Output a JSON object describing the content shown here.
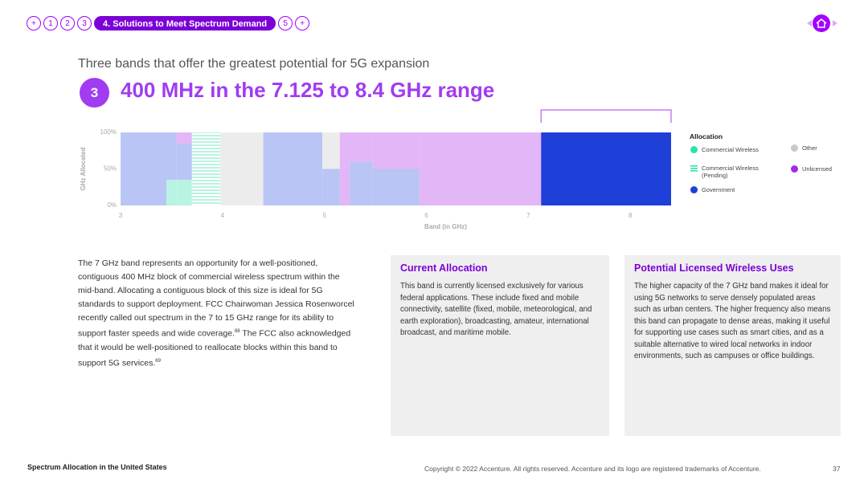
{
  "nav": {
    "items": [
      "+",
      "1",
      "2",
      "3",
      "4. Solutions to Meet Spectrum Demand",
      "5",
      "+"
    ],
    "active": 4
  },
  "header": {
    "kicker": "Three bands that offer the greatest potential for 5G expansion",
    "number": "3",
    "title": "400 MHz in the 7.125 to 8.4 GHz range"
  },
  "chart_data": {
    "type": "stacked_histogram",
    "y_label": "GHz Allocated",
    "x_label": "Band (in GHz)",
    "legend_title": "Allocation",
    "legend": "right",
    "bins": [
      3,
      3.45,
      3.55,
      3.7,
      3.98,
      4.4,
      4.98,
      5.15,
      5.25,
      5.47,
      5.93,
      7.125,
      8.4
    ],
    "highlight": [
      7.125,
      8.4
    ],
    "series": [
      {
        "name": "Commercial Wireless",
        "color": "#2be3b0",
        "faded_color": "#b9f3e2",
        "values": [
          0,
          35,
          35,
          0,
          0,
          0,
          0,
          0,
          0,
          0,
          0,
          0
        ]
      },
      {
        "name": "Commercial Wireless (Pending)",
        "color": "#2be3b0",
        "faded_color": "#b9f3e2",
        "pattern": "stripes",
        "values": [
          0,
          0,
          0,
          100,
          0,
          0,
          0,
          0,
          0,
          0,
          0,
          0
        ]
      },
      {
        "name": "Government",
        "color": "#1e3fd8",
        "faded_color": "#b8c5f5",
        "values": [
          100,
          65,
          50,
          0,
          0,
          100,
          50,
          0,
          60,
          50,
          0,
          100
        ]
      },
      {
        "name": "Other",
        "color": "#c8c8c8",
        "faded_color": "#ececec",
        "values": [
          0,
          0,
          0,
          0,
          100,
          0,
          50,
          0,
          0,
          0,
          0,
          0
        ]
      },
      {
        "name": "Unlicensed",
        "color": "#a628e8",
        "faded_color": "#e3b6f7",
        "values": [
          0,
          0,
          15,
          0,
          0,
          0,
          0,
          100,
          40,
          50,
          100,
          0
        ]
      }
    ],
    "xlim": [
      3,
      8.4
    ],
    "xticks": [
      3,
      4,
      5,
      6,
      7,
      8
    ],
    "ylim": [
      0,
      100
    ],
    "yticks": [
      {
        "value": 0,
        "label": "0%"
      },
      {
        "value": 50,
        "label": "50%"
      },
      {
        "value": 100,
        "label": "100%"
      }
    ]
  },
  "body": [
    "The 7 GHz band represents an opportunity for a well-positioned, contiguous 400 MHz block of commercial wireless spectrum within the mid-band. Allocating a contiguous block of this size is ideal for 5G standards to support deployment. FCC Chairwoman Jessica Rosenworcel recently called out spectrum in the 7 to 15 GHz range for its ability to support faster speeds and wide coverage.",
    "68",
    " The FCC also acknowledged that it would be well-positioned to reallocate blocks within this band to support 5G services.",
    "69"
  ],
  "boxes": [
    {
      "title": "Current Allocation",
      "text": "This band is currently licensed exclusively for various federal applications. These include fixed and mobile connectivity, satellite (fixed, mobile, meteorological, and earth exploration), broadcasting, amateur, international broadcast, and maritime mobile."
    },
    {
      "title": "Potential Licensed Wireless Uses",
      "text": "The higher capacity of the 7 GHz band makes it ideal for using 5G networks to serve densely populated areas such as urban centers. The higher frequency also means this band can propagate to dense areas, making it useful for supporting use cases such as smart cities, and as a suitable alternative to wired local networks in indoor environments, such as campuses or office buildings."
    }
  ],
  "footer": {
    "left": "Spectrum Allocation in the United States",
    "copyright": "Copyright © 2022 Accenture. All rights reserved. Accenture and its logo are registered trademarks of Accenture.",
    "page": "37"
  }
}
